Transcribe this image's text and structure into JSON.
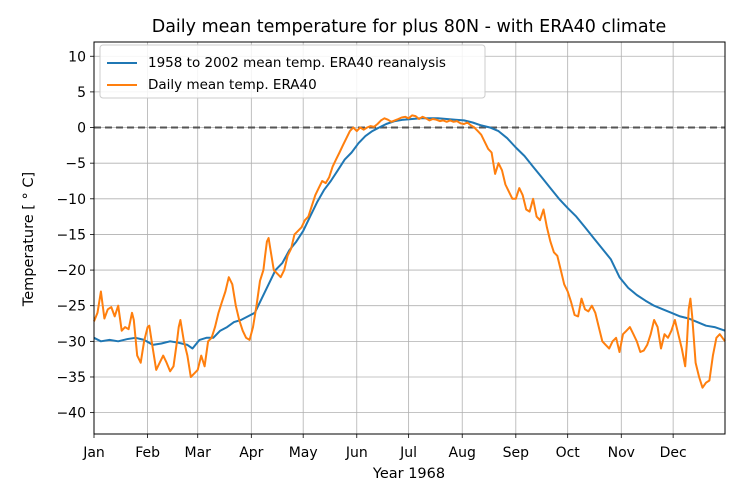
{
  "chart_data": {
    "type": "line",
    "title": "Daily mean temperature for plus 80N - with ERA40 climate",
    "xlabel": "Year 1968",
    "ylabel": "Temperature [$^\\circ$C]",
    "ylabel_display": "Temperature [ ° C]",
    "ylim": [
      -43,
      12
    ],
    "xlim": [
      1,
      366
    ],
    "yticks": [
      10,
      5,
      0,
      -5,
      -10,
      -15,
      -20,
      -25,
      -30,
      -35,
      -40
    ],
    "ytick_labels": [
      "10",
      "5",
      "0",
      "−5",
      "−10",
      "−15",
      "−20",
      "−25",
      "−30",
      "−35",
      "−40"
    ],
    "xticks": [
      {
        "label": "Jan",
        "day": 1
      },
      {
        "label": "Feb",
        "day": 32
      },
      {
        "label": "Mar",
        "day": 61
      },
      {
        "label": "Apr",
        "day": 92
      },
      {
        "label": "May",
        "day": 122
      },
      {
        "label": "Jun",
        "day": 153
      },
      {
        "label": "Jul",
        "day": 183
      },
      {
        "label": "Aug",
        "day": 214
      },
      {
        "label": "Sep",
        "day": 245
      },
      {
        "label": "Oct",
        "day": 275
      },
      {
        "label": "Nov",
        "day": 306
      },
      {
        "label": "Dec",
        "day": 336
      }
    ],
    "grid": true,
    "zero_line": {
      "y": 0,
      "style": "dashed",
      "color": "#555555"
    },
    "legend": {
      "position": "top-left"
    },
    "series": [
      {
        "name": "1958 to 2002 mean temp. ERA40 reanalysis",
        "color": "#1f77b4",
        "points": [
          [
            1,
            -29.5
          ],
          [
            5,
            -30
          ],
          [
            10,
            -29.8
          ],
          [
            15,
            -30
          ],
          [
            20,
            -29.7
          ],
          [
            25,
            -29.5
          ],
          [
            30,
            -29.8
          ],
          [
            35,
            -30.5
          ],
          [
            40,
            -30.3
          ],
          [
            45,
            -30
          ],
          [
            50,
            -30.2
          ],
          [
            55,
            -30.5
          ],
          [
            58,
            -31
          ],
          [
            62,
            -29.8
          ],
          [
            66,
            -29.5
          ],
          [
            70,
            -29.5
          ],
          [
            74,
            -28.5
          ],
          [
            78,
            -28
          ],
          [
            82,
            -27.3
          ],
          [
            86,
            -27
          ],
          [
            90,
            -26.5
          ],
          [
            94,
            -26
          ],
          [
            98,
            -24
          ],
          [
            102,
            -22
          ],
          [
            106,
            -20
          ],
          [
            110,
            -19
          ],
          [
            114,
            -17.2
          ],
          [
            118,
            -16
          ],
          [
            122,
            -14.5
          ],
          [
            126,
            -12.5
          ],
          [
            130,
            -10.5
          ],
          [
            134,
            -8.8
          ],
          [
            138,
            -7.5
          ],
          [
            142,
            -6
          ],
          [
            146,
            -4.5
          ],
          [
            150,
            -3.5
          ],
          [
            154,
            -2.2
          ],
          [
            158,
            -1.2
          ],
          [
            162,
            -0.5
          ],
          [
            166,
            0
          ],
          [
            170,
            0.5
          ],
          [
            175,
            0.9
          ],
          [
            180,
            1.1
          ],
          [
            185,
            1.2
          ],
          [
            190,
            1.3
          ],
          [
            195,
            1.3
          ],
          [
            200,
            1.3
          ],
          [
            205,
            1.2
          ],
          [
            210,
            1.1
          ],
          [
            215,
            1
          ],
          [
            220,
            0.7
          ],
          [
            225,
            0.3
          ],
          [
            230,
            0
          ],
          [
            235,
            -0.5
          ],
          [
            240,
            -1.5
          ],
          [
            245,
            -2.8
          ],
          [
            250,
            -4
          ],
          [
            255,
            -5.5
          ],
          [
            260,
            -7
          ],
          [
            265,
            -8.5
          ],
          [
            270,
            -10
          ],
          [
            275,
            -11.3
          ],
          [
            280,
            -12.5
          ],
          [
            285,
            -14
          ],
          [
            290,
            -15.5
          ],
          [
            295,
            -17
          ],
          [
            300,
            -18.5
          ],
          [
            305,
            -21
          ],
          [
            310,
            -22.5
          ],
          [
            315,
            -23.5
          ],
          [
            320,
            -24.3
          ],
          [
            325,
            -25
          ],
          [
            330,
            -25.5
          ],
          [
            335,
            -26
          ],
          [
            340,
            -26.5
          ],
          [
            345,
            -26.8
          ],
          [
            350,
            -27.3
          ],
          [
            355,
            -27.8
          ],
          [
            360,
            -28
          ],
          [
            366,
            -28.5
          ]
        ]
      },
      {
        "name": "Daily mean temp. ERA40",
        "color": "#ff7f0e",
        "points": [
          [
            1,
            -27.2
          ],
          [
            3,
            -26
          ],
          [
            5,
            -23
          ],
          [
            7,
            -26.8
          ],
          [
            9,
            -25.5
          ],
          [
            11,
            -25.2
          ],
          [
            13,
            -26.5
          ],
          [
            15,
            -25
          ],
          [
            17,
            -28.5
          ],
          [
            19,
            -28
          ],
          [
            21,
            -28.3
          ],
          [
            23,
            -26
          ],
          [
            24,
            -27
          ],
          [
            26,
            -32
          ],
          [
            28,
            -33
          ],
          [
            30,
            -30
          ],
          [
            32,
            -28
          ],
          [
            33,
            -27.8
          ],
          [
            35,
            -31
          ],
          [
            37,
            -34
          ],
          [
            39,
            -33
          ],
          [
            41,
            -32
          ],
          [
            43,
            -33
          ],
          [
            45,
            -34.2
          ],
          [
            47,
            -33.5
          ],
          [
            49,
            -30
          ],
          [
            50,
            -28
          ],
          [
            51,
            -27
          ],
          [
            53,
            -30
          ],
          [
            55,
            -32
          ],
          [
            57,
            -35
          ],
          [
            59,
            -34.5
          ],
          [
            61,
            -34
          ],
          [
            63,
            -32
          ],
          [
            65,
            -33.5
          ],
          [
            67,
            -30
          ],
          [
            69,
            -29.5
          ],
          [
            71,
            -28
          ],
          [
            73,
            -26
          ],
          [
            75,
            -24.5
          ],
          [
            77,
            -23
          ],
          [
            78,
            -22
          ],
          [
            79,
            -21
          ],
          [
            81,
            -22
          ],
          [
            83,
            -25
          ],
          [
            85,
            -27
          ],
          [
            87,
            -28.5
          ],
          [
            89,
            -29.5
          ],
          [
            91,
            -29.8
          ],
          [
            93,
            -28
          ],
          [
            95,
            -25
          ],
          [
            97,
            -21.5
          ],
          [
            99,
            -20
          ],
          [
            100,
            -18
          ],
          [
            101,
            -16
          ],
          [
            102,
            -15.5
          ],
          [
            103,
            -17
          ],
          [
            105,
            -20
          ],
          [
            107,
            -20.5
          ],
          [
            109,
            -21
          ],
          [
            111,
            -20
          ],
          [
            113,
            -18
          ],
          [
            115,
            -17
          ],
          [
            117,
            -15
          ],
          [
            119,
            -14.5
          ],
          [
            121,
            -14
          ],
          [
            123,
            -13
          ],
          [
            125,
            -12.5
          ],
          [
            127,
            -11
          ],
          [
            129,
            -9.5
          ],
          [
            131,
            -8.5
          ],
          [
            133,
            -7.5
          ],
          [
            135,
            -7.8
          ],
          [
            137,
            -7
          ],
          [
            139,
            -5.5
          ],
          [
            141,
            -4.5
          ],
          [
            143,
            -3.5
          ],
          [
            145,
            -2.5
          ],
          [
            147,
            -1.5
          ],
          [
            149,
            -0.5
          ],
          [
            151,
            0
          ],
          [
            153,
            -0.5
          ],
          [
            155,
            0
          ],
          [
            157,
            -0.3
          ],
          [
            159,
            0
          ],
          [
            161,
            0.2
          ],
          [
            163,
            0.1
          ],
          [
            165,
            0.5
          ],
          [
            167,
            1
          ],
          [
            169,
            1.3
          ],
          [
            171,
            1.1
          ],
          [
            173,
            0.8
          ],
          [
            175,
            1
          ],
          [
            177,
            1.2
          ],
          [
            179,
            1.4
          ],
          [
            181,
            1.5
          ],
          [
            183,
            1.3
          ],
          [
            185,
            1.7
          ],
          [
            187,
            1.6
          ],
          [
            189,
            1.2
          ],
          [
            191,
            1.5
          ],
          [
            193,
            1.3
          ],
          [
            195,
            1
          ],
          [
            197,
            1.2
          ],
          [
            199,
            1.1
          ],
          [
            201,
            0.9
          ],
          [
            203,
            1
          ],
          [
            205,
            0.8
          ],
          [
            207,
            1
          ],
          [
            209,
            0.8
          ],
          [
            211,
            0.9
          ],
          [
            213,
            0.6
          ],
          [
            215,
            0.5
          ],
          [
            217,
            0.7
          ],
          [
            219,
            0.3
          ],
          [
            221,
            0
          ],
          [
            223,
            -0.5
          ],
          [
            225,
            -1
          ],
          [
            227,
            -2
          ],
          [
            229,
            -3
          ],
          [
            231,
            -3.5
          ],
          [
            233,
            -6.5
          ],
          [
            235,
            -5
          ],
          [
            237,
            -6
          ],
          [
            239,
            -8
          ],
          [
            241,
            -9
          ],
          [
            243,
            -10
          ],
          [
            245,
            -10
          ],
          [
            247,
            -8.5
          ],
          [
            249,
            -9.5
          ],
          [
            251,
            -11.5
          ],
          [
            253,
            -11.8
          ],
          [
            255,
            -10
          ],
          [
            257,
            -12.5
          ],
          [
            259,
            -13
          ],
          [
            261,
            -11.5
          ],
          [
            263,
            -14
          ],
          [
            265,
            -16
          ],
          [
            267,
            -17.5
          ],
          [
            269,
            -18
          ],
          [
            271,
            -20
          ],
          [
            273,
            -22
          ],
          [
            275,
            -23
          ],
          [
            277,
            -24.5
          ],
          [
            279,
            -26.3
          ],
          [
            281,
            -26.5
          ],
          [
            283,
            -24
          ],
          [
            285,
            -25.5
          ],
          [
            287,
            -25.8
          ],
          [
            289,
            -25
          ],
          [
            291,
            -26
          ],
          [
            293,
            -28
          ],
          [
            295,
            -30
          ],
          [
            297,
            -30.5
          ],
          [
            299,
            -31
          ],
          [
            301,
            -30
          ],
          [
            303,
            -29.5
          ],
          [
            305,
            -31.5
          ],
          [
            307,
            -29
          ],
          [
            309,
            -28.5
          ],
          [
            311,
            -28
          ],
          [
            313,
            -29
          ],
          [
            315,
            -30
          ],
          [
            317,
            -31.5
          ],
          [
            319,
            -31.3
          ],
          [
            321,
            -30.5
          ],
          [
            323,
            -29
          ],
          [
            325,
            -27
          ],
          [
            327,
            -28
          ],
          [
            329,
            -31
          ],
          [
            331,
            -29
          ],
          [
            333,
            -29.5
          ],
          [
            335,
            -28.5
          ],
          [
            337,
            -27
          ],
          [
            339,
            -29
          ],
          [
            341,
            -31
          ],
          [
            343,
            -33.5
          ],
          [
            344,
            -30
          ],
          [
            345,
            -25.5
          ],
          [
            346,
            -24
          ],
          [
            347,
            -26.5
          ],
          [
            349,
            -33
          ],
          [
            351,
            -35
          ],
          [
            353,
            -36.5
          ],
          [
            355,
            -35.8
          ],
          [
            357,
            -35.5
          ],
          [
            359,
            -32
          ],
          [
            361,
            -29.5
          ],
          [
            363,
            -29
          ],
          [
            366,
            -30
          ]
        ]
      }
    ]
  }
}
